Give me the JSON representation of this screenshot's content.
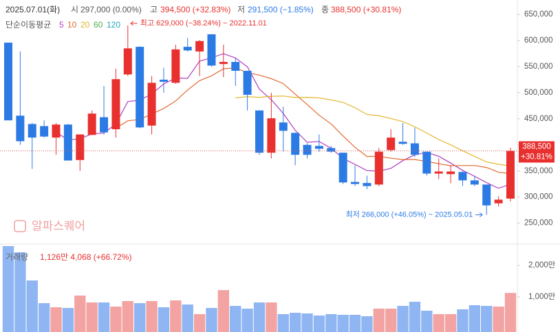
{
  "chart_data": {
    "type": "candlestick",
    "header": {
      "date": "2025.07.01(화)",
      "open_label": "시",
      "open_text": "297,000 (0.00%)",
      "high_label": "고",
      "high_text": "394,500 (+32.83%)",
      "low_label": "저",
      "low_text": "291,500 (−1.85%)",
      "close_label": "종",
      "close_text": "388,500 (+30.81%)"
    },
    "ma_title": "단순이동평균",
    "ma_series": [
      {
        "name": "5",
        "color": "#b03cc0",
        "values": [
          null,
          null,
          null,
          null,
          424600,
          409200,
          411800,
          421000,
          422600,
          440000,
          483000,
          485700,
          497500,
          516900,
          528300,
          527500,
          560600,
          567200,
          574800,
          566600,
          549600,
          506800,
          486600,
          460200,
          428000,
          405000,
          406500,
          393700,
          373900,
          362700,
          350700,
          349600,
          355000,
          369800,
          381000,
          385800,
          378200,
          365200,
          351200,
          339800,
          327600,
          316800,
          324700
        ]
      },
      {
        "name": "10",
        "color": "#e2692e",
        "values": [
          null,
          null,
          null,
          null,
          null,
          null,
          null,
          null,
          null,
          432300,
          446100,
          448800,
          459300,
          469800,
          484200,
          505300,
          523200,
          532400,
          545900,
          547500,
          538600,
          533700,
          526900,
          517500,
          497300,
          477300,
          456700,
          440200,
          417100,
          395400,
          377900,
          378100,
          374400,
          371900,
          371900,
          368300,
          363900,
          360100,
          360500,
          360400,
          356700,
          347500,
          345000
        ]
      },
      {
        "name": "20",
        "color": "#e3b52a",
        "values": [
          null,
          null,
          null,
          null,
          null,
          null,
          null,
          null,
          null,
          null,
          null,
          null,
          null,
          null,
          null,
          null,
          null,
          null,
          null,
          489900,
          492300,
          491200,
          493100,
          493600,
          490700,
          491300,
          489900,
          486300,
          481500,
          471400,
          458200,
          455900,
          450600,
          444700,
          434600,
          422800,
          410300,
          400100,
          388800,
          377900,
          367300,
          362800,
          359700
        ]
      },
      {
        "name": "60",
        "color": "#4caf50"
      },
      {
        "name": "120",
        "color": "#1fa4b8"
      }
    ],
    "open": [
      596000,
      456000,
      440000,
      436000,
      414000,
      439000,
      371000,
      419000,
      453000,
      430000,
      535000,
      588000,
      437000,
      525000,
      519000,
      588000,
      579000,
      612000,
      555000,
      559000,
      542000,
      466000,
      385000,
      443000,
      423000,
      400000,
      398000,
      394000,
      385000,
      329000,
      327000,
      324000,
      390000,
      406000,
      403000,
      387000,
      345000,
      344000,
      348000,
      332000,
      324000,
      288000,
      297000
    ],
    "high": [
      596000,
      579000,
      442000,
      447000,
      442000,
      440000,
      420000,
      466000,
      513000,
      546000,
      629000,
      589000,
      532000,
      548000,
      592000,
      605000,
      601000,
      612000,
      592000,
      565500,
      542000,
      466000,
      500000,
      473000,
      424000,
      403000,
      420000,
      398000,
      385000,
      361000,
      341000,
      394000,
      430000,
      442000,
      433000,
      387000,
      374000,
      361000,
      350000,
      341000,
      324000,
      301500,
      394500
    ],
    "low": [
      447000,
      400000,
      354000,
      414000,
      381000,
      370000,
      350000,
      419000,
      420000,
      414000,
      532000,
      432000,
      420000,
      500000,
      517000,
      579000,
      532000,
      550000,
      530000,
      513000,
      466000,
      381000,
      374000,
      387000,
      361000,
      374000,
      387000,
      385000,
      325000,
      321000,
      315000,
      321000,
      387000,
      400000,
      377000,
      341000,
      334500,
      326500,
      321000,
      321000,
      266000,
      282000,
      291500
    ],
    "close": [
      447000,
      407000,
      414000,
      416000,
      439000,
      370000,
      420000,
      460000,
      424000,
      526000,
      585000,
      433500,
      519000,
      521000,
      583000,
      581000,
      599000,
      552000,
      559000,
      542000,
      496000,
      385000,
      451000,
      427000,
      381000,
      381000,
      392500,
      387000,
      328000,
      325000,
      321000,
      387000,
      414000,
      402000,
      381000,
      345000,
      349000,
      349000,
      332000,
      324000,
      284000,
      295000,
      388500
    ],
    "up_color": "#e8312f",
    "down_color": "#2c7be5",
    "ylim": [
      210000,
      677700
    ],
    "yticks": [
      {
        "value": 250000,
        "label": "250,000"
      },
      {
        "value": 300000,
        "label": "300,000"
      },
      {
        "value": 350000,
        "label": "350,000"
      },
      {
        "value": 400000,
        "label": "400,000"
      },
      {
        "value": 450000,
        "label": "450,000"
      },
      {
        "value": 500000,
        "label": "500,000"
      },
      {
        "value": 550000,
        "label": "550,000"
      },
      {
        "value": 600000,
        "label": "600,000"
      },
      {
        "value": 650000,
        "label": "650,000"
      }
    ],
    "last_price_label": "388,500",
    "last_change_label": "+30.81%",
    "high_annotation": "최고 629,000 (−38.24%) − 2022.11.01",
    "low_annotation": "최저 266,000 (+46.05%) − 2025.05.01",
    "watermark": "알파스퀘어",
    "volume": {
      "title": "거래량",
      "summary": "1,126만 4,068 (+66.72%)",
      "values": [
        2609,
        2413,
        1522,
        804,
        674,
        652,
        1043,
        826,
        826,
        696,
        870,
        804,
        870,
        674,
        891,
        761,
        457,
        652,
        1217,
        717,
        630,
        826,
        826,
        457,
        500,
        478,
        413,
        457,
        435,
        435,
        391,
        630,
        630,
        717,
        848,
        565,
        457,
        457,
        609,
        739,
        717,
        696,
        1126.4068
      ],
      "up_color": "#f4a3a3",
      "down_color": "#8fb6f2",
      "ylim": [
        0,
        2700
      ],
      "yticks": [
        {
          "value": 1000,
          "label": "1,000만"
        },
        {
          "value": 2000,
          "label": "2,000만"
        }
      ]
    }
  }
}
